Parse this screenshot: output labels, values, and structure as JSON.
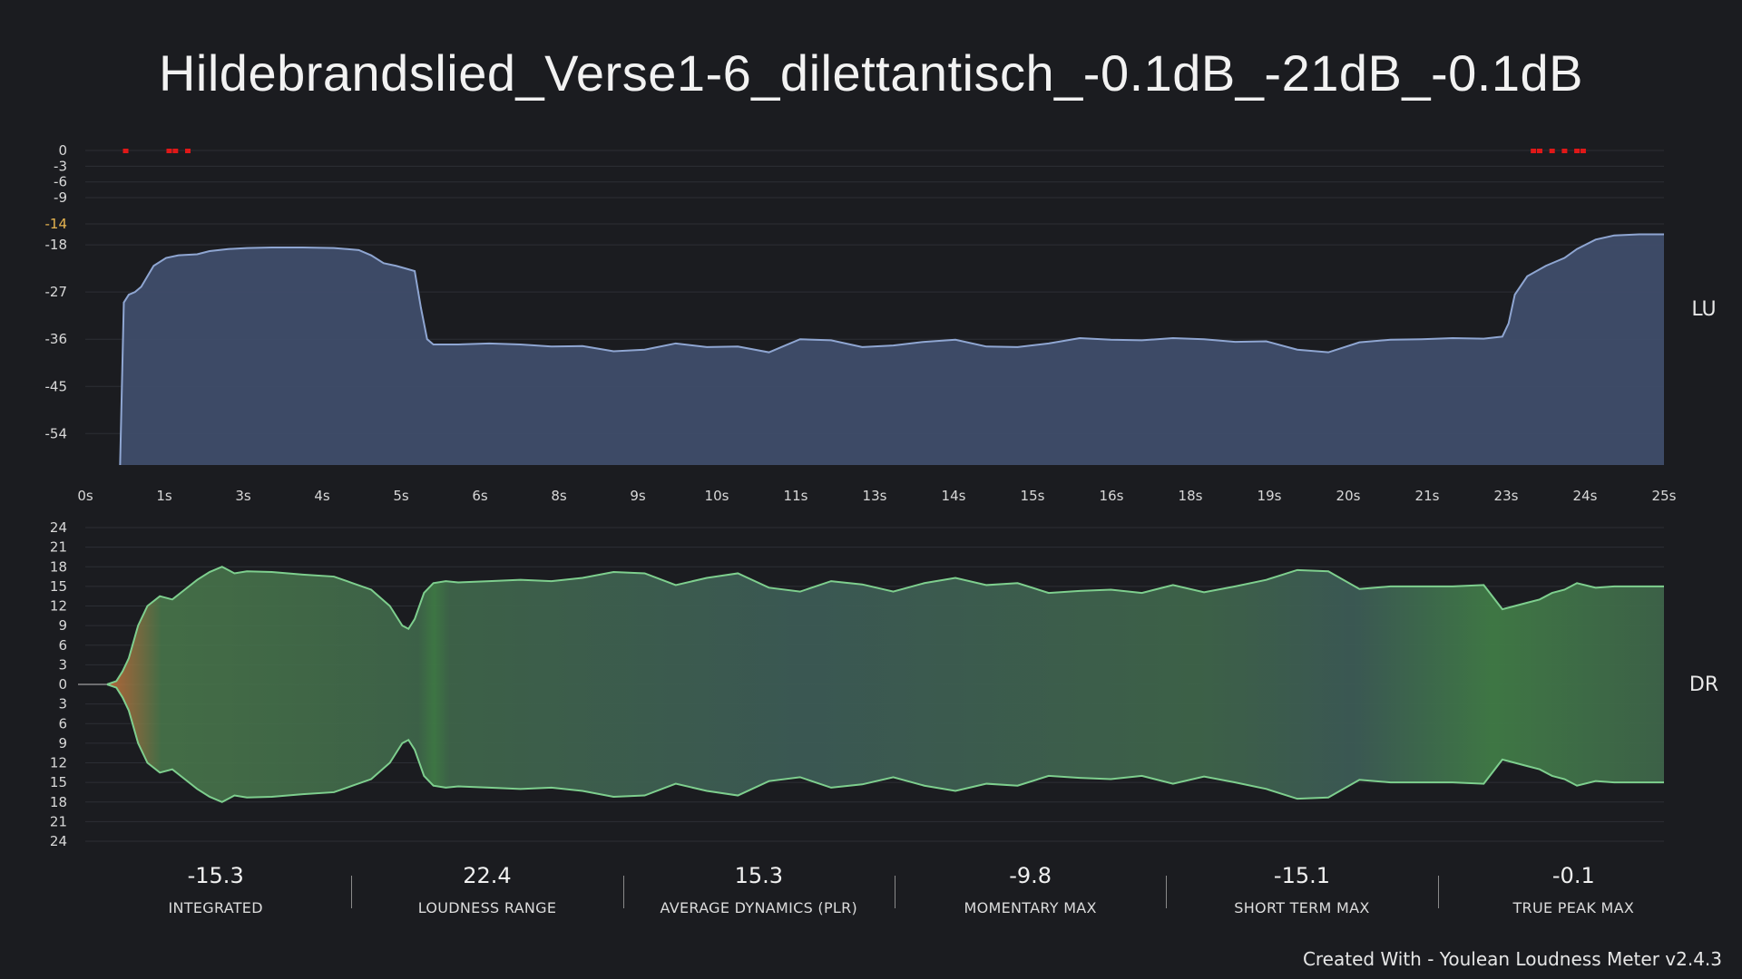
{
  "title": "Hildebrandslied_Verse1-6_dilettantisch_-0.1dB_-21dB_-0.1dB",
  "footer": "Created With - Youlean Loudness Meter v2.4.3",
  "colors": {
    "background": "#1b1c20",
    "loudness_fill": "#3f4d6a",
    "loudness_line": "#8fa6d2",
    "dr_fill": "#3f6b4c",
    "dr_line": "#7ecf8e",
    "dr_onset": "#e07a3e",
    "true_peak_marker": "#e01818",
    "target_tick": "#e6b450"
  },
  "chart_data": [
    {
      "type": "area",
      "name": "loudness",
      "side_label": "LU",
      "x_unit": "s",
      "xlim": [
        0,
        25.4
      ],
      "ylim": [
        -60,
        0
      ],
      "x_ticks": [
        "0s",
        "1s",
        "3s",
        "4s",
        "5s",
        "6s",
        "8s",
        "9s",
        "10s",
        "11s",
        "13s",
        "14s",
        "15s",
        "16s",
        "18s",
        "19s",
        "20s",
        "21s",
        "23s",
        "24s",
        "25s"
      ],
      "y_ticks": [
        0,
        -3,
        -6,
        -9,
        -14,
        -18,
        -27,
        -36,
        -45,
        -54
      ],
      "target_tick": -14,
      "grid": true,
      "x": [
        0.56,
        0.62,
        0.7,
        0.8,
        0.9,
        1.0,
        1.1,
        1.3,
        1.5,
        1.8,
        2.0,
        2.3,
        2.6,
        3.0,
        3.5,
        4.0,
        4.4,
        4.6,
        4.8,
        5.0,
        5.15,
        5.3,
        5.4,
        5.5,
        5.6,
        5.8,
        6.0,
        6.5,
        7.0,
        7.5,
        8.0,
        8.5,
        9.0,
        9.5,
        10.0,
        10.5,
        11.0,
        11.5,
        12.0,
        12.5,
        13.0,
        13.5,
        14.0,
        14.5,
        15.0,
        15.5,
        16.0,
        16.5,
        17.0,
        17.5,
        18.0,
        18.5,
        19.0,
        19.5,
        20.0,
        20.5,
        21.0,
        21.5,
        22.0,
        22.5,
        22.8,
        22.9,
        23.0,
        23.2,
        23.5,
        23.8,
        24.0,
        24.3,
        24.6,
        25.0,
        25.4
      ],
      "values": [
        -60,
        -29,
        -27.5,
        -27,
        -26,
        -24,
        -22,
        -20.5,
        -20,
        -19.8,
        -19.2,
        -18.8,
        -18.6,
        -18.5,
        -18.5,
        -18.6,
        -19,
        -20,
        -21.5,
        -22,
        -22.5,
        -23,
        -30,
        -36,
        -37,
        -37,
        -37,
        -36.8,
        -37,
        -37.4,
        -37.3,
        -38.3,
        -38,
        -36.8,
        -37.5,
        -37.4,
        -38.5,
        -36,
        -36.2,
        -37.5,
        -37.2,
        -36.5,
        -36.1,
        -37.4,
        -37.5,
        -36.8,
        -35.8,
        -36.1,
        -36.2,
        -35.8,
        -36,
        -36.5,
        -36.4,
        -38,
        -38.5,
        -36.6,
        -36.1,
        -36,
        -35.8,
        -35.9,
        -35.5,
        -33,
        -27.5,
        -24,
        -22,
        -20.5,
        -18.8,
        -17,
        -16.2,
        -16,
        -16
      ],
      "true_peak_markers": [
        0.65,
        1.35,
        1.45,
        1.65,
        23.3,
        23.4,
        23.6,
        23.8,
        24.0,
        24.1
      ]
    },
    {
      "type": "area",
      "name": "dynamic-range",
      "side_label": "DR",
      "x_unit": "s",
      "xlim": [
        0,
        25.4
      ],
      "ylim": [
        -24,
        24
      ],
      "y_ticks": [
        24,
        21,
        18,
        15,
        12,
        9,
        6,
        3,
        0,
        3,
        6,
        9,
        12,
        15,
        18,
        21,
        24
      ],
      "grid": true,
      "x": [
        0.35,
        0.5,
        0.6,
        0.7,
        0.85,
        1.0,
        1.2,
        1.4,
        1.6,
        1.8,
        2.0,
        2.2,
        2.4,
        2.6,
        3.0,
        3.5,
        4.0,
        4.3,
        4.6,
        4.9,
        5.1,
        5.2,
        5.3,
        5.45,
        5.6,
        5.8,
        6.0,
        6.5,
        7.0,
        7.5,
        8.0,
        8.5,
        9.0,
        9.5,
        10.0,
        10.5,
        11.0,
        11.5,
        12.0,
        12.5,
        13.0,
        13.5,
        14.0,
        14.5,
        15.0,
        15.5,
        16.0,
        16.5,
        17.0,
        17.5,
        18.0,
        18.5,
        19.0,
        19.5,
        20.0,
        20.5,
        21.0,
        21.5,
        22.0,
        22.5,
        22.8,
        23.0,
        23.2,
        23.4,
        23.6,
        23.8,
        24.0,
        24.3,
        24.6,
        25.0,
        25.4
      ],
      "values": [
        0,
        0.5,
        2,
        4,
        9,
        12,
        13.5,
        13,
        14.5,
        16,
        17.2,
        18,
        17,
        17.3,
        17.2,
        16.8,
        16.5,
        15.5,
        14.5,
        12,
        9,
        8.5,
        10,
        14,
        15.5,
        15.8,
        15.6,
        15.8,
        16,
        15.8,
        16.3,
        17.2,
        17,
        15.2,
        16.3,
        17,
        14.8,
        14.2,
        15.8,
        15.3,
        14.2,
        15.5,
        16.3,
        15.2,
        15.5,
        14,
        14.3,
        14.5,
        14,
        15.2,
        14.1,
        15,
        16,
        17.5,
        17.3,
        14.6,
        15,
        15,
        15,
        15.2,
        11.5,
        12,
        12.5,
        13,
        14,
        14.5,
        15.5,
        14.8,
        15,
        15,
        15
      ]
    }
  ],
  "stats": [
    {
      "value": "-15.3",
      "label": "INTEGRATED"
    },
    {
      "value": "22.4",
      "label": "LOUDNESS RANGE"
    },
    {
      "value": "15.3",
      "label": "AVERAGE DYNAMICS (PLR)"
    },
    {
      "value": "-9.8",
      "label": "MOMENTARY MAX"
    },
    {
      "value": "-15.1",
      "label": "SHORT TERM MAX"
    },
    {
      "value": "-0.1",
      "label": "TRUE PEAK MAX"
    }
  ]
}
